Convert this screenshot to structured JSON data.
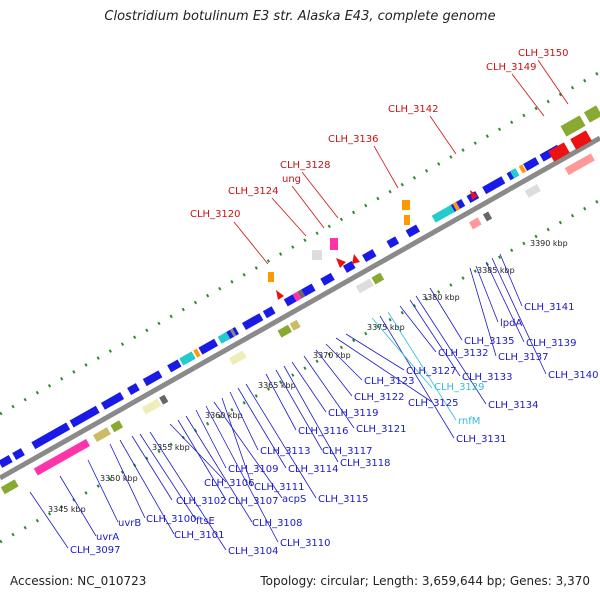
{
  "title": "Clostridium botulinum E3 str. Alaska E43, complete genome",
  "footer": {
    "accession": "Accession: NC_010723",
    "stats": "Topology: circular; Length: 3,659,644 bp; Genes: 3,370"
  },
  "colors": {
    "backbone": "#8a8a8a",
    "forward": "#1a1ae6",
    "reverse": "#ee1111",
    "dots": "#2e8b2e",
    "label_blue": "#1a1acc",
    "label_red": "#cc1111",
    "label_cyan": "#33bbdd"
  },
  "ticks": [
    "3345 kbp",
    "3350 kbp",
    "3355 kbp",
    "3360 kbp",
    "3365 kbp",
    "3370 kbp",
    "3375 kbp",
    "3380 kbp",
    "3385 kbp",
    "3390 kbp"
  ],
  "labels_blue": [
    "CLH_3097",
    "uvrA",
    "uvrB",
    "CLH_3100",
    "CLH_3101",
    "CLH_3102",
    "ftsE",
    "CLH_3104",
    "CLH_3106",
    "CLH_3107",
    "CLH_3108",
    "CLH_3109",
    "CLH_3110",
    "acpS",
    "CLH_3111",
    "CLH_3113",
    "CLH_3114",
    "CLH_3115",
    "CLH_3116",
    "CLH_3117",
    "CLH_3118",
    "CLH_3119",
    "CLH_3121",
    "CLH_3122",
    "CLH_3123",
    "CLH_3125",
    "CLH_3127",
    "CLH_3131",
    "CLH_3132",
    "CLH_3133",
    "CLH_3134",
    "CLH_3135",
    "CLH_3137",
    "lpdA",
    "CLH_3139",
    "CLH_3140",
    "CLH_3141"
  ],
  "labels_cyan": [
    "CLH_3129",
    "rnfM"
  ],
  "labels_red": [
    "CLH_3120",
    "CLH_3124",
    "ung",
    "CLH_3128",
    "CLH_3136",
    "CLH_3142",
    "CLH_3149",
    "CLH_3150"
  ]
}
